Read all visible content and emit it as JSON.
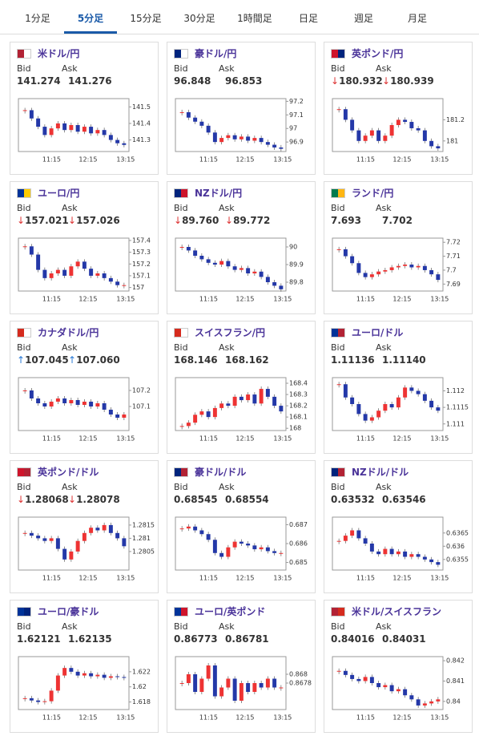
{
  "tabs": [
    "1分足",
    "5分足",
    "15分足",
    "30分足",
    "1時間足",
    "日足",
    "週足",
    "月足"
  ],
  "active_tab": 1,
  "labels": {
    "bid": "Bid",
    "ask": "Ask"
  },
  "time_labels": [
    "11:15",
    "12:15",
    "13:15"
  ],
  "cards": [
    {
      "name": "米ドル/円",
      "flag": [
        "#b22234",
        "#ffffff"
      ],
      "arrow": null,
      "bid": "141.274",
      "ask": "141.276",
      "ylim": [
        141.23,
        141.55
      ],
      "yticks": [
        141.3,
        141.4,
        141.5
      ],
      "closes": [
        141.48,
        141.43,
        141.38,
        141.33,
        141.37,
        141.4,
        141.36,
        141.39,
        141.35,
        141.38,
        141.34,
        141.36,
        141.33,
        141.3,
        141.28,
        141.27
      ]
    },
    {
      "name": "豪ドル/円",
      "flag": [
        "#00247d",
        "#ffffff"
      ],
      "arrow": null,
      "bid": "96.848",
      "ask": "96.853",
      "ylim": [
        96.83,
        97.22
      ],
      "yticks": [
        96.9,
        97,
        97.1,
        97.2
      ],
      "closes": [
        97.12,
        97.08,
        97.05,
        97.02,
        96.97,
        96.9,
        96.93,
        96.95,
        96.92,
        96.94,
        96.91,
        96.93,
        96.9,
        96.88,
        96.86,
        96.85
      ]
    },
    {
      "name": "英ポンド/円",
      "flag": [
        "#cf142b",
        "#00247d"
      ],
      "arrow": "↓",
      "bid": "180.932",
      "ask": "180.939",
      "ylim": [
        180.9,
        181.4
      ],
      "yticks": [
        181,
        181.2
      ],
      "closes": [
        181.3,
        181.2,
        181.1,
        181,
        181.05,
        181.1,
        181,
        181.05,
        181.15,
        181.2,
        181.18,
        181.12,
        181.1,
        181,
        180.95,
        180.93
      ]
    },
    {
      "name": "ユーロ/円",
      "flag": [
        "#003399",
        "#ffcc00"
      ],
      "arrow": "↓",
      "bid": "157.021",
      "ask": "157.026",
      "ylim": [
        156.97,
        157.42
      ],
      "yticks": [
        157,
        157.1,
        157.2,
        157.3,
        157.4
      ],
      "closes": [
        157.35,
        157.28,
        157.15,
        157.08,
        157.12,
        157.15,
        157.1,
        157.18,
        157.22,
        157.16,
        157.1,
        157.12,
        157.08,
        157.05,
        157.02,
        157.02
      ]
    },
    {
      "name": "NZドル/円",
      "flag": [
        "#00247d",
        "#cc142b"
      ],
      "arrow": "↓",
      "bid": "89.760",
      "ask": "89.772",
      "ylim": [
        89.75,
        90.05
      ],
      "yticks": [
        89.8,
        89.9,
        90
      ],
      "closes": [
        90,
        89.98,
        89.95,
        89.93,
        89.91,
        89.9,
        89.92,
        89.89,
        89.87,
        89.88,
        89.85,
        89.86,
        89.83,
        89.8,
        89.78,
        89.76
      ]
    },
    {
      "name": "ランド/円",
      "flag": [
        "#007a4d",
        "#ffb612"
      ],
      "arrow": null,
      "bid": "7.693",
      "ask": "7.702",
      "ylim": [
        7.685,
        7.723
      ],
      "yticks": [
        7.69,
        7.7,
        7.71,
        7.72
      ],
      "closes": [
        7.715,
        7.71,
        7.705,
        7.698,
        7.695,
        7.697,
        7.699,
        7.7,
        7.702,
        7.703,
        7.704,
        7.702,
        7.703,
        7.7,
        7.697,
        7.693
      ]
    },
    {
      "name": "カナダドル/円",
      "flag": [
        "#d52b1e",
        "#ffffff"
      ],
      "arrow": "↑",
      "bid": "107.045",
      "ask": "107.060",
      "ylim": [
        106.95,
        107.28
      ],
      "yticks": [
        107.1,
        107.2
      ],
      "closes": [
        107.2,
        107.15,
        107.12,
        107.1,
        107.13,
        107.15,
        107.12,
        107.14,
        107.11,
        107.13,
        107.1,
        107.12,
        107.08,
        107.05,
        107.03,
        107.05
      ]
    },
    {
      "name": "スイスフラン/円",
      "flag": [
        "#d52b1e",
        "#ffffff"
      ],
      "arrow": null,
      "bid": "168.146",
      "ask": "168.162",
      "ylim": [
        167.98,
        168.45
      ],
      "yticks": [
        168,
        168.1,
        168.2,
        168.3,
        168.4
      ],
      "closes": [
        168.02,
        168.05,
        168.12,
        168.15,
        168.1,
        168.18,
        168.22,
        168.2,
        168.28,
        168.25,
        168.3,
        168.22,
        168.35,
        168.28,
        168.2,
        168.15
      ]
    },
    {
      "name": "ユーロ/ドル",
      "flag": [
        "#003399",
        "#b22234"
      ],
      "arrow": null,
      "bid": "1.11136",
      "ask": "1.11140",
      "ylim": [
        1.1108,
        1.1124
      ],
      "yticks": [
        1.111,
        1.1115,
        1.112
      ],
      "closes": [
        1.1122,
        1.1118,
        1.1116,
        1.1113,
        1.1111,
        1.1112,
        1.1114,
        1.1116,
        1.1115,
        1.1118,
        1.1121,
        1.112,
        1.1119,
        1.1117,
        1.1115,
        1.1114
      ]
    },
    {
      "name": "英ポンド/ドル",
      "flag": [
        "#cf142b",
        "#b22234"
      ],
      "arrow": "↓",
      "bid": "1.28068",
      "ask": "1.28078",
      "ylim": [
        1.2798,
        1.2818
      ],
      "yticks": [
        1.2805,
        1.281,
        1.2815
      ],
      "closes": [
        1.2812,
        1.2811,
        1.281,
        1.2809,
        1.281,
        1.2806,
        1.2802,
        1.2805,
        1.2809,
        1.2812,
        1.2814,
        1.2813,
        1.2815,
        1.2812,
        1.281,
        1.2807
      ]
    },
    {
      "name": "豪ドル/ドル",
      "flag": [
        "#00247d",
        "#b22234"
      ],
      "arrow": null,
      "bid": "0.68545",
      "ask": "0.68554",
      "ylim": [
        0.6846,
        0.6874
      ],
      "yticks": [
        0.685,
        0.686,
        0.687
      ],
      "closes": [
        0.6868,
        0.6869,
        0.6867,
        0.6865,
        0.6862,
        0.6855,
        0.6853,
        0.6858,
        0.6861,
        0.686,
        0.6859,
        0.6857,
        0.6858,
        0.6856,
        0.6855,
        0.6855
      ]
    },
    {
      "name": "NZドル/ドル",
      "flag": [
        "#00247d",
        "#b22234"
      ],
      "arrow": null,
      "bid": "0.63532",
      "ask": "0.63546",
      "ylim": [
        0.6351,
        0.6371
      ],
      "yticks": [
        0.6355,
        0.636,
        0.6365
      ],
      "closes": [
        0.6362,
        0.6364,
        0.6366,
        0.6363,
        0.6361,
        0.6358,
        0.6357,
        0.6359,
        0.6357,
        0.6358,
        0.6356,
        0.6357,
        0.6356,
        0.6355,
        0.6354,
        0.6353
      ]
    },
    {
      "name": "ユーロ/豪ドル",
      "flag": [
        "#003399",
        "#00247d"
      ],
      "arrow": null,
      "bid": "1.62121",
      "ask": "1.62135",
      "ylim": [
        1.617,
        1.624
      ],
      "yticks": [
        1.618,
        1.62,
        1.622
      ],
      "closes": [
        1.6185,
        1.6182,
        1.618,
        1.6181,
        1.6195,
        1.6215,
        1.6225,
        1.622,
        1.6215,
        1.6218,
        1.6214,
        1.6216,
        1.6212,
        1.6214,
        1.6213,
        1.6212
      ]
    },
    {
      "name": "ユーロ/英ポンド",
      "flag": [
        "#003399",
        "#cf142b"
      ],
      "arrow": null,
      "bid": "0.86773",
      "ask": "0.86781",
      "ylim": [
        0.8672,
        0.8684
      ],
      "yticks": [
        0.8678,
        0.868
      ],
      "closes": [
        0.8678,
        0.868,
        0.8676,
        0.8679,
        0.8682,
        0.8675,
        0.8677,
        0.8679,
        0.8674,
        0.8678,
        0.8676,
        0.8678,
        0.8677,
        0.8679,
        0.8677,
        0.8677
      ]
    },
    {
      "name": "米ドル/スイスフラン",
      "flag": [
        "#b22234",
        "#d52b1e"
      ],
      "arrow": null,
      "bid": "0.84016",
      "ask": "0.84031",
      "ylim": [
        0.8396,
        0.8422
      ],
      "yticks": [
        0.84,
        0.841,
        0.842
      ],
      "closes": [
        0.8415,
        0.8413,
        0.8411,
        0.841,
        0.8412,
        0.8409,
        0.8407,
        0.8408,
        0.8405,
        0.8406,
        0.8403,
        0.8401,
        0.8398,
        0.8399,
        0.84,
        0.8401
      ]
    }
  ]
}
